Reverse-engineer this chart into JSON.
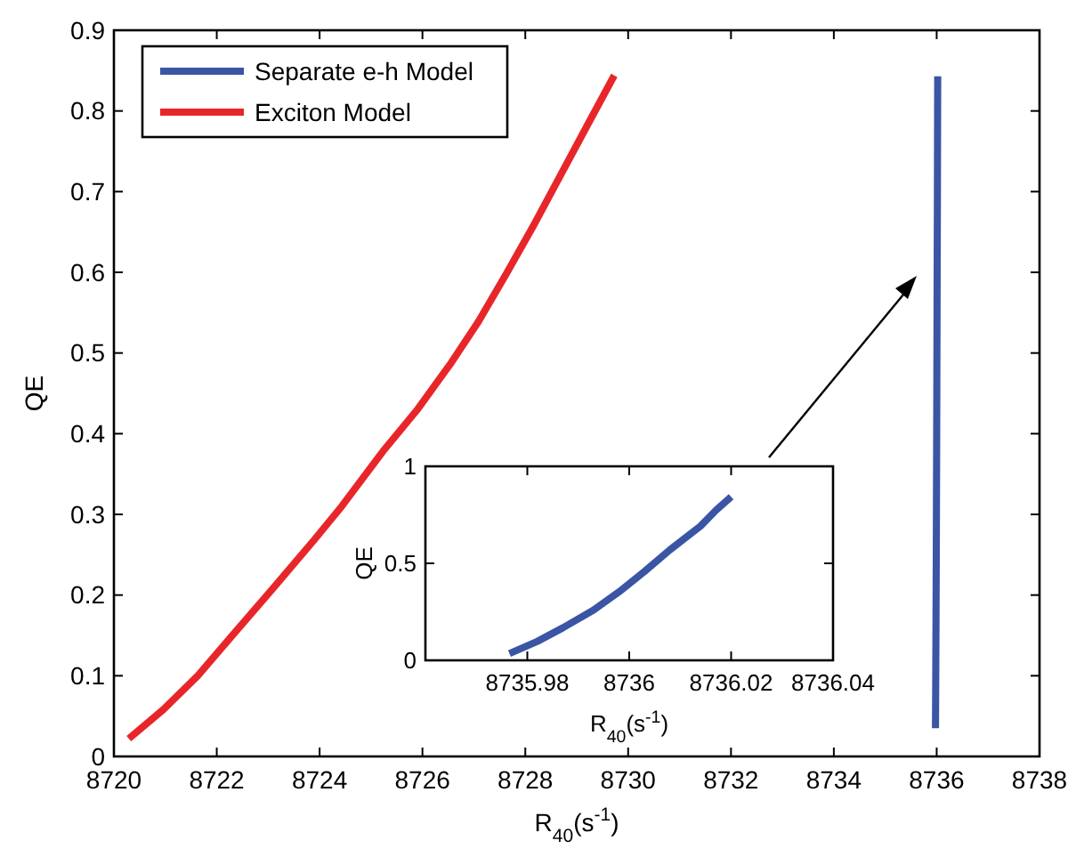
{
  "chart_data": [
    {
      "type": "line",
      "xlabel": "R$_{40}$(s$^{-1}$)",
      "ylabel": "QE",
      "xlim": [
        8720,
        8738
      ],
      "xticks": [
        8720,
        8722,
        8724,
        8726,
        8728,
        8730,
        8732,
        8734,
        8736,
        8738
      ],
      "ylim": [
        0,
        0.9
      ],
      "yticks": [
        0,
        0.1,
        0.2,
        0.3,
        0.4,
        0.5,
        0.6,
        0.7,
        0.8,
        0.9
      ],
      "legend": "top left",
      "series": [
        {
          "name": "Separate e-h Model",
          "color": "#3a55a4",
          "x": [
            8735.9765,
            8735.982,
            8735.987,
            8735.993,
            8735.998,
            8736.003,
            8736.008,
            8736.014,
            8736.017,
            8736.02
          ],
          "values": [
            0.035,
            0.098,
            0.168,
            0.259,
            0.353,
            0.458,
            0.57,
            0.692,
            0.773,
            0.843
          ]
        },
        {
          "name": "Exciton Model",
          "color": "#e8262a",
          "x": [
            8720.29,
            8720.96,
            8721.63,
            8722.29,
            8723.09,
            8723.89,
            8724.43,
            8725.23,
            8725.89,
            8726.56,
            8727.09,
            8727.63,
            8728.16,
            8728.69,
            8729.23,
            8729.73
          ],
          "values": [
            0.022,
            0.058,
            0.1,
            0.149,
            0.208,
            0.268,
            0.31,
            0.378,
            0.429,
            0.488,
            0.539,
            0.598,
            0.658,
            0.721,
            0.785,
            0.844
          ]
        }
      ]
    },
    {
      "type": "line",
      "xlabel": "R$_{40}$(s$^{-1}$)",
      "ylabel": "QE",
      "xlim": [
        8735.96,
        8736.04
      ],
      "xticks": [
        8735.98,
        8736,
        8736.02,
        8736.04
      ],
      "ylim": [
        0,
        1
      ],
      "yticks": [
        0,
        0.5,
        1
      ],
      "series": [
        {
          "color": "#3a55a4",
          "x": [
            8735.9765,
            8735.982,
            8735.987,
            8735.993,
            8735.998,
            8736.003,
            8736.008,
            8736.014,
            8736.017,
            8736.02
          ],
          "values": [
            0.035,
            0.098,
            0.168,
            0.259,
            0.353,
            0.458,
            0.57,
            0.692,
            0.773,
            0.843
          ]
        }
      ]
    }
  ]
}
